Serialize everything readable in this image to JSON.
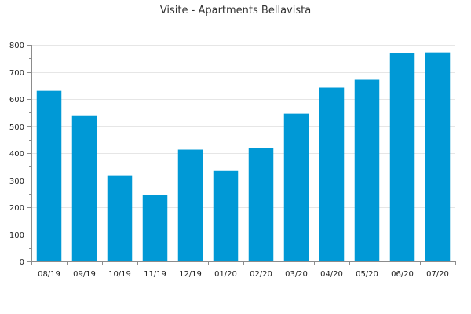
{
  "chart_data": {
    "type": "bar",
    "title": "Visite - Apartments Bellavista",
    "xlabel": "",
    "ylabel": "",
    "categories": [
      "08/19",
      "09/19",
      "10/19",
      "11/19",
      "12/19",
      "01/20",
      "02/20",
      "03/20",
      "04/20",
      "05/20",
      "06/20",
      "07/20"
    ],
    "values": [
      630,
      537,
      317,
      245,
      413,
      334,
      419,
      546,
      642,
      671,
      770,
      772
    ],
    "ylim": [
      0,
      800
    ],
    "yticks": [
      0,
      100,
      200,
      300,
      400,
      500,
      600,
      700,
      800
    ],
    "grid": true,
    "legend": "none",
    "bar_color": "#0099d6"
  }
}
